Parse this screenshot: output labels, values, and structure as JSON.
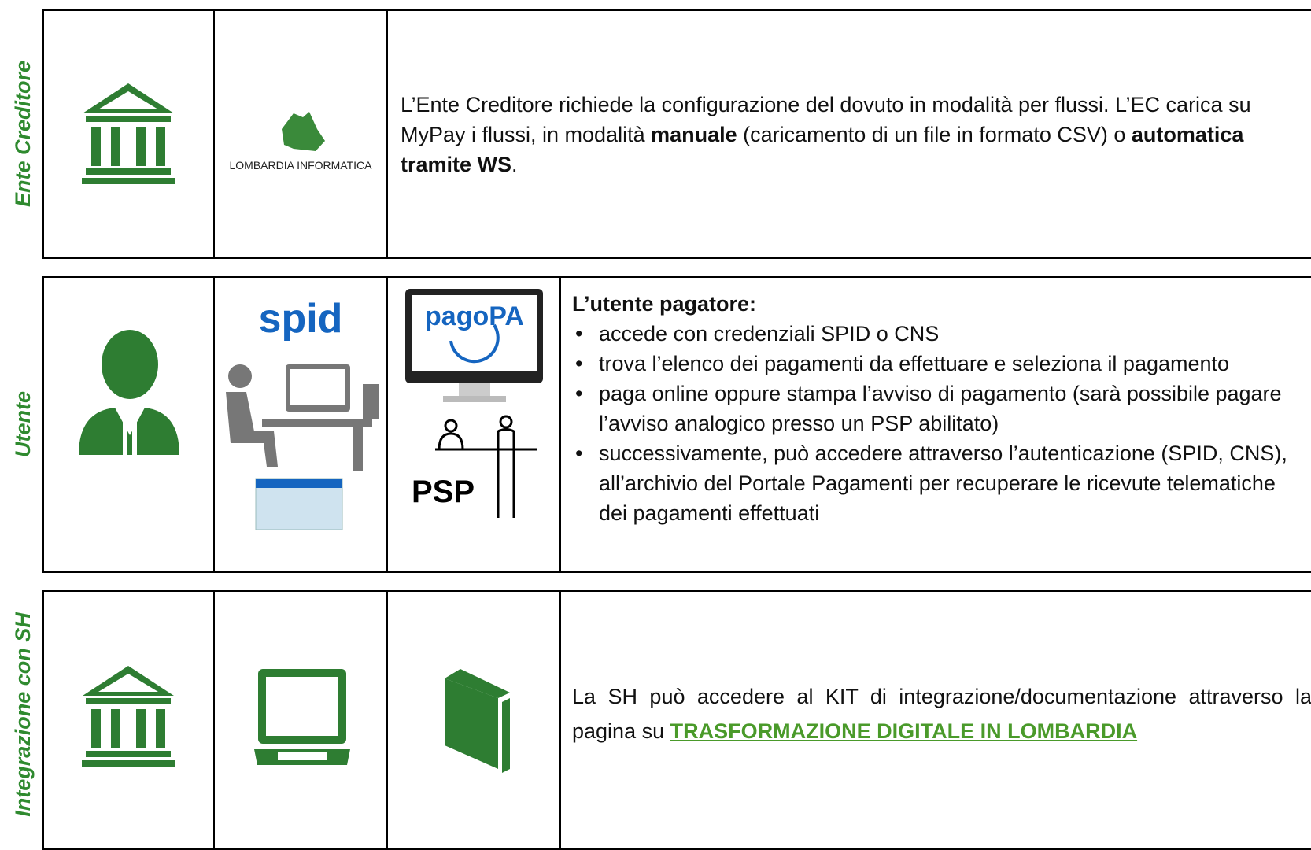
{
  "rows": [
    {
      "label": "Ente Creditore",
      "logo": "LOMBARDIA INFORMATICA",
      "text": [
        "L’Ente Creditore richiede la configurazione del dovuto in modalità per flussi. L’EC carica su MyPay i flussi, in modalità ",
        "manuale",
        " (caricamento di un file in formato CSV) o ",
        "automatica tramite WS",
        "."
      ]
    },
    {
      "label": "Utente",
      "logos": [
        "spid",
        "pagoPA",
        "PSP"
      ],
      "heading": "L’utente pagatore:",
      "bullets": [
        "accede con credenziali SPID o CNS",
        "trova l’elenco dei pagamenti da effettuare e seleziona il pagamento",
        "paga online oppure stampa l’avviso di pagamento (sarà possibile pagare l’avviso analogico presso un PSP abilitato)",
        "successivamente, può accedere attraverso l’autenticazione (SPID, CNS), all’archivio del Portale Pagamenti per recuperare le ricevute telematiche dei pagamenti effettuati"
      ]
    },
    {
      "label": "Integrazione con SH",
      "text": "La SH può accedere al KIT di integrazione/documentazione attraverso la pagina su ",
      "link": "TRASFORMAZIONE DIGITALE IN LOMBARDIA"
    }
  ]
}
